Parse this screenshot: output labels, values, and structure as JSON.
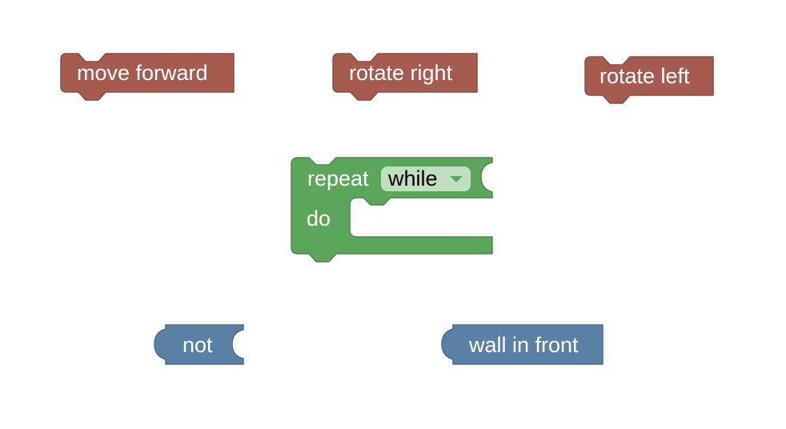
{
  "workspace": {
    "background": "#ffffff"
  },
  "blocks": {
    "move_forward": {
      "label": "move forward",
      "color": "#a55b4f"
    },
    "rotate_right": {
      "label": "rotate right",
      "color": "#a55b4f"
    },
    "rotate_left": {
      "label": "rotate left",
      "color": "#a55b4f"
    },
    "repeat": {
      "label": "repeat",
      "do_label": "do",
      "color": "#5ca65c",
      "dropdown": {
        "selected": "while",
        "color": "#bfdfbf"
      }
    },
    "not": {
      "label": "not",
      "color": "#5b80a5"
    },
    "wall_in_front": {
      "label": "wall in front",
      "color": "#5b80a5"
    }
  }
}
